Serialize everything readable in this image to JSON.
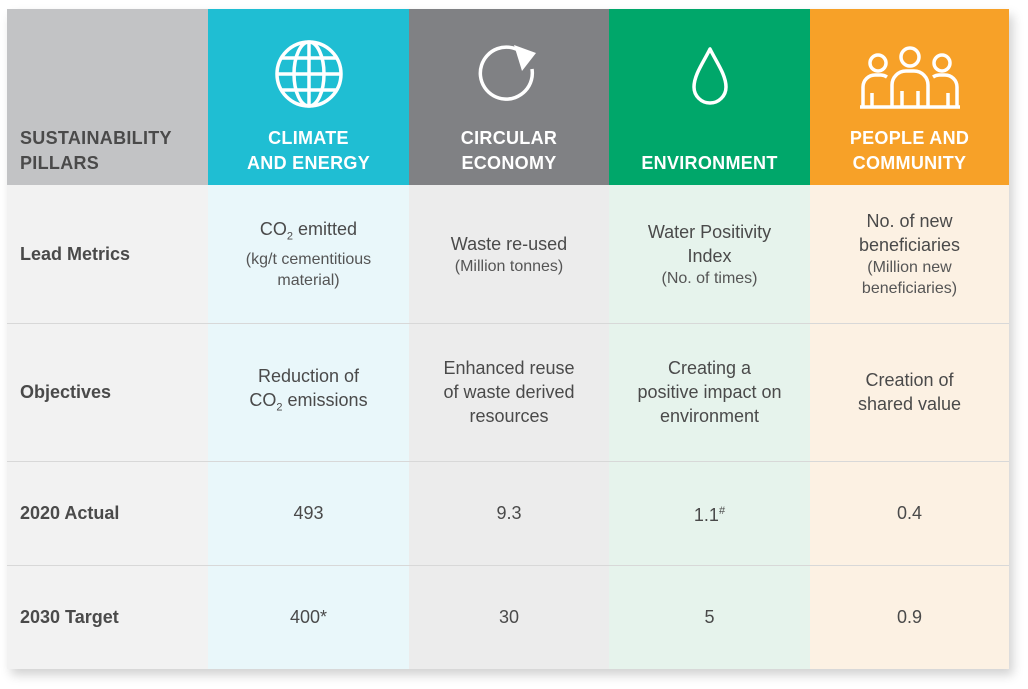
{
  "header": {
    "label_line1": "SUSTAINABILITY",
    "label_line2": "PILLARS",
    "pillars": [
      {
        "line1": "CLIMATE",
        "line2": "AND ENERGY",
        "icon": "globe-icon",
        "color": "#1fbed3"
      },
      {
        "line1": "CIRCULAR",
        "line2": "ECONOMY",
        "icon": "recycle-arrow-icon",
        "color": "#808184"
      },
      {
        "line1": "ENVIRONMENT",
        "line2": "",
        "icon": "water-drop-icon",
        "color": "#00a76a"
      },
      {
        "line1": "PEOPLE AND",
        "line2": "COMMUNITY",
        "icon": "people-icon",
        "color": "#f7a128"
      }
    ]
  },
  "rows": {
    "lead_metrics": {
      "label": "Lead Metrics",
      "climate": {
        "main_pre": "CO",
        "main_sub": "2",
        "main_post": " emitted",
        "unit_line1": "(kg/t cementitious",
        "unit_line2": "material)"
      },
      "circular": {
        "main": "Waste re-used",
        "unit": "(Million tonnes)"
      },
      "environment": {
        "main_line1": "Water Positivity",
        "main_line2": "Index",
        "unit": "(No. of times)"
      },
      "people": {
        "main_line1": "No. of new",
        "main_line2": "beneficiaries",
        "unit_line1": "(Million new",
        "unit_line2": "beneficiaries)"
      }
    },
    "objectives": {
      "label": "Objectives",
      "climate": {
        "line1": "Reduction of",
        "line2_pre": "CO",
        "line2_sub": "2",
        "line2_post": " emissions"
      },
      "circular": {
        "line1": "Enhanced reuse",
        "line2": "of waste derived",
        "line3": "resources"
      },
      "environment": {
        "line1": "Creating a",
        "line2": "positive impact on",
        "line3": "environment"
      },
      "people": {
        "line1": "Creation of",
        "line2": "shared value"
      }
    },
    "actual_2020": {
      "label": "2020 Actual",
      "climate": "493",
      "circular": "9.3",
      "environment": "1.1",
      "environment_mark": "#",
      "people": "0.4"
    },
    "target_2030": {
      "label": "2030 Target",
      "climate": "400*",
      "circular": "30",
      "environment": "5",
      "people": "0.9"
    }
  }
}
